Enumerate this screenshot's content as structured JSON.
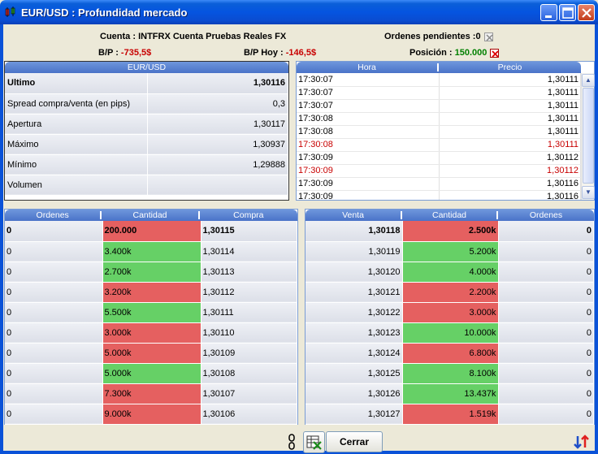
{
  "window": {
    "title": "EUR/USD : Profundidad mercado"
  },
  "header": {
    "cuenta_label": "Cuenta :",
    "cuenta_value": "INTFRX Cuenta Pruebas Reales FX",
    "ordenes_label": "Ordenes pendientes :",
    "ordenes_value": "0",
    "bp_label": "B/P :",
    "bp_value": "-735,5$",
    "bp_hoy_label": "B/P Hoy :",
    "bp_hoy_value": "-146,5$",
    "posicion_label": "Posición :",
    "posicion_value": "150.000"
  },
  "stats": {
    "header": "EUR/USD",
    "rows": [
      {
        "label": "Ultimo",
        "value": "1,30116"
      },
      {
        "label": "Spread compra/venta (en pips)",
        "value": "0,3"
      },
      {
        "label": "Apertura",
        "value": "1,30117"
      },
      {
        "label": "Máximo",
        "value": "1,30937"
      },
      {
        "label": "Mínimo",
        "value": "1,29888"
      },
      {
        "label": "Volumen",
        "value": ""
      }
    ]
  },
  "trades": {
    "columns": [
      "Hora",
      "Precio"
    ],
    "rows": [
      {
        "time": "17:30:07",
        "price": "1,30111"
      },
      {
        "time": "17:30:07",
        "price": "1,30111"
      },
      {
        "time": "17:30:07",
        "price": "1,30111"
      },
      {
        "time": "17:30:08",
        "price": "1,30111"
      },
      {
        "time": "17:30:08",
        "price": "1,30111"
      },
      {
        "time": "17:30:08",
        "price": "1,30111"
      },
      {
        "time": "17:30:09",
        "price": "1,30112"
      },
      {
        "time": "17:30:09",
        "price": "1,30112"
      },
      {
        "time": "17:30:09",
        "price": "1,30116"
      },
      {
        "time": "17:30:09",
        "price": "1,30116"
      }
    ]
  },
  "bids": {
    "columns": [
      "Ordenes",
      "Cantidad",
      "Compra"
    ],
    "rows": [
      {
        "orders": "0",
        "qty": "200.000",
        "price": "1,30115"
      },
      {
        "orders": "0",
        "qty": "3.400k",
        "price": "1,30114"
      },
      {
        "orders": "0",
        "qty": "2.700k",
        "price": "1,30113"
      },
      {
        "orders": "0",
        "qty": "3.200k",
        "price": "1,30112"
      },
      {
        "orders": "0",
        "qty": "5.500k",
        "price": "1,30111"
      },
      {
        "orders": "0",
        "qty": "3.000k",
        "price": "1,30110"
      },
      {
        "orders": "0",
        "qty": "5.000k",
        "price": "1,30109"
      },
      {
        "orders": "0",
        "qty": "5.000k",
        "price": "1,30108"
      },
      {
        "orders": "0",
        "qty": "7.300k",
        "price": "1,30107"
      },
      {
        "orders": "0",
        "qty": "9.000k",
        "price": "1,30106"
      }
    ]
  },
  "asks": {
    "columns": [
      "Venta",
      "Cantidad",
      "Ordenes"
    ],
    "rows": [
      {
        "price": "1,30118",
        "qty": "2.500k",
        "orders": "0"
      },
      {
        "price": "1,30119",
        "qty": "5.200k",
        "orders": "0"
      },
      {
        "price": "1,30120",
        "qty": "4.000k",
        "orders": "0"
      },
      {
        "price": "1,30121",
        "qty": "2.200k",
        "orders": "0"
      },
      {
        "price": "1,30122",
        "qty": "3.000k",
        "orders": "0"
      },
      {
        "price": "1,30123",
        "qty": "10.000k",
        "orders": "0"
      },
      {
        "price": "1,30124",
        "qty": "6.800k",
        "orders": "0"
      },
      {
        "price": "1,30125",
        "qty": "8.100k",
        "orders": "0"
      },
      {
        "price": "1,30126",
        "qty": "13.437k",
        "orders": "0"
      },
      {
        "price": "1,30127",
        "qty": "1.519k",
        "orders": "0"
      }
    ]
  },
  "footer": {
    "close_label": "Cerrar"
  },
  "colors": {
    "bid_red": "#e56060",
    "bid_green": "#66d066",
    "negative": "#c80000",
    "positive": "#008000"
  },
  "row_states": {
    "trades_red": [
      false,
      false,
      false,
      false,
      false,
      true,
      false,
      true,
      false,
      false
    ],
    "bid_colors": [
      "red",
      "green",
      "green",
      "red",
      "green",
      "red",
      "red",
      "green",
      "red",
      "red"
    ],
    "ask_colors": [
      "red",
      "green",
      "green",
      "red",
      "red",
      "green",
      "red",
      "green",
      "green",
      "red"
    ]
  }
}
